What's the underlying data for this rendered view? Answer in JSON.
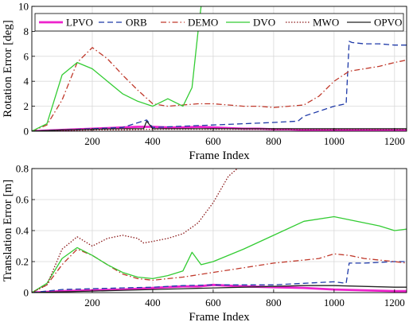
{
  "chart_data": [
    {
      "type": "line",
      "xlabel": "Frame Index",
      "ylabel": "Rotation Error [deg]",
      "xlim": [
        0,
        1240
      ],
      "ylim": [
        0,
        10
      ],
      "xticks": [
        200,
        400,
        600,
        800,
        1000,
        1200
      ],
      "yticks": [
        0,
        2,
        4,
        6,
        8,
        10
      ],
      "grid": true,
      "legend": {
        "position": "top",
        "entries": [
          "LPVO",
          "ORB",
          "DEMO",
          "DVO",
          "MWO",
          "OPVO"
        ]
      },
      "series": [
        {
          "name": "LPVO",
          "color": "#ee22cc",
          "style": "solid-thick",
          "x": [
            0,
            50,
            100,
            150,
            200,
            250,
            300,
            350,
            400,
            450,
            500,
            550,
            600,
            650,
            700,
            750,
            800,
            850,
            900,
            950,
            1000,
            1050,
            1100,
            1150,
            1200,
            1240
          ],
          "y": [
            0,
            0.05,
            0.1,
            0.15,
            0.2,
            0.25,
            0.3,
            0.35,
            0.35,
            0.3,
            0.3,
            0.35,
            0.3,
            0.25,
            0.2,
            0.2,
            0.15,
            0.15,
            0.1,
            0.1,
            0.1,
            0.1,
            0.1,
            0.1,
            0.1,
            0.1
          ]
        },
        {
          "name": "ORB",
          "color": "#1f3aa8",
          "style": "dashed",
          "x": [
            0,
            100,
            200,
            300,
            380,
            400,
            500,
            600,
            700,
            800,
            880,
            900,
            950,
            1000,
            1040,
            1050,
            1060,
            1100,
            1150,
            1200,
            1240
          ],
          "y": [
            0,
            0.1,
            0.2,
            0.3,
            0.9,
            0.3,
            0.4,
            0.5,
            0.6,
            0.7,
            0.8,
            1.2,
            1.6,
            2.0,
            2.2,
            7.2,
            7.1,
            7.0,
            7.0,
            6.9,
            6.9
          ]
        },
        {
          "name": "DEMO",
          "color": "#c0392b",
          "style": "dashdot",
          "x": [
            0,
            50,
            100,
            150,
            200,
            250,
            300,
            350,
            400,
            450,
            500,
            550,
            600,
            650,
            700,
            750,
            800,
            850,
            900,
            950,
            1000,
            1050,
            1100,
            1150,
            1200,
            1240
          ],
          "y": [
            0,
            0.5,
            2.5,
            5.5,
            6.7,
            5.8,
            4.5,
            3.3,
            2.2,
            2.0,
            2.1,
            2.2,
            2.2,
            2.1,
            2.0,
            2.0,
            1.9,
            2.0,
            2.1,
            2.8,
            4.0,
            4.8,
            5.0,
            5.2,
            5.5,
            5.7
          ]
        },
        {
          "name": "DVO",
          "color": "#33cc33",
          "style": "solid",
          "x": [
            0,
            50,
            100,
            150,
            200,
            250,
            300,
            350,
            400,
            450,
            500,
            530,
            550,
            560
          ],
          "y": [
            0,
            0.6,
            4.5,
            5.5,
            5.0,
            4.0,
            3.0,
            2.4,
            2.0,
            2.6,
            2.0,
            3.5,
            8.0,
            10
          ]
        },
        {
          "name": "MWO",
          "color": "#8b1a1a",
          "style": "dotted",
          "x": [
            0,
            100,
            200,
            300,
            400,
            500,
            600,
            700,
            800,
            900,
            1000,
            1100,
            1200,
            1240
          ],
          "y": [
            0,
            0.05,
            0.1,
            0.1,
            0.15,
            0.15,
            0.15,
            0.15,
            0.15,
            0.15,
            0.15,
            0.15,
            0.15,
            0.15
          ]
        },
        {
          "name": "OPVO",
          "color": "#222222",
          "style": "solid",
          "x": [
            0,
            100,
            200,
            300,
            370,
            380,
            400,
            500,
            600,
            700,
            800,
            900,
            1000,
            1100,
            1200,
            1240
          ],
          "y": [
            0,
            0.1,
            0.15,
            0.2,
            0.2,
            0.8,
            0.2,
            0.2,
            0.2,
            0.2,
            0.2,
            0.2,
            0.2,
            0.2,
            0.2,
            0.2
          ]
        }
      ]
    },
    {
      "type": "line",
      "xlabel": "Frame Index",
      "ylabel": "Translation Error [m]",
      "xlim": [
        0,
        1240
      ],
      "ylim": [
        0,
        0.8
      ],
      "xticks": [
        200,
        400,
        600,
        800,
        1000,
        1200
      ],
      "yticks": [
        0,
        0.2,
        0.4,
        0.6,
        0.8
      ],
      "grid": true,
      "series": [
        {
          "name": "LPVO",
          "color": "#ee22cc",
          "style": "solid-thick",
          "x": [
            0,
            100,
            200,
            300,
            400,
            500,
            550,
            600,
            700,
            800,
            900,
            1000,
            1100,
            1200,
            1240
          ],
          "y": [
            0,
            0.01,
            0.015,
            0.02,
            0.03,
            0.04,
            0.04,
            0.05,
            0.04,
            0.035,
            0.03,
            0.02,
            0.015,
            0.01,
            0.01
          ]
        },
        {
          "name": "ORB",
          "color": "#1f3aa8",
          "style": "dashed",
          "x": [
            0,
            100,
            200,
            300,
            400,
            500,
            600,
            700,
            800,
            900,
            1000,
            1040,
            1050,
            1100,
            1200,
            1240
          ],
          "y": [
            0,
            0.02,
            0.025,
            0.03,
            0.035,
            0.045,
            0.05,
            0.05,
            0.05,
            0.06,
            0.07,
            0.06,
            0.19,
            0.19,
            0.2,
            0.2
          ]
        },
        {
          "name": "DEMO",
          "color": "#c0392b",
          "style": "dashdot",
          "x": [
            0,
            50,
            100,
            150,
            200,
            250,
            300,
            350,
            400,
            500,
            600,
            700,
            800,
            900,
            950,
            1000,
            1050,
            1100,
            1150,
            1200,
            1240
          ],
          "y": [
            0,
            0.05,
            0.18,
            0.28,
            0.24,
            0.18,
            0.12,
            0.09,
            0.08,
            0.1,
            0.13,
            0.16,
            0.19,
            0.21,
            0.22,
            0.25,
            0.24,
            0.22,
            0.21,
            0.2,
            0.19
          ]
        },
        {
          "name": "DVO",
          "color": "#33cc33",
          "style": "solid",
          "x": [
            0,
            50,
            100,
            150,
            200,
            250,
            300,
            350,
            400,
            450,
            500,
            530,
            560,
            600,
            700,
            800,
            900,
            1000,
            1050,
            1100,
            1150,
            1200,
            1240
          ],
          "y": [
            0,
            0.06,
            0.22,
            0.29,
            0.24,
            0.18,
            0.13,
            0.1,
            0.09,
            0.11,
            0.14,
            0.26,
            0.18,
            0.2,
            0.28,
            0.37,
            0.46,
            0.49,
            0.47,
            0.45,
            0.43,
            0.4,
            0.41
          ]
        },
        {
          "name": "MWO",
          "color": "#8b1a1a",
          "style": "dotted",
          "x": [
            0,
            50,
            100,
            150,
            200,
            250,
            300,
            350,
            370,
            400,
            450,
            500,
            550,
            600,
            650,
            680
          ],
          "y": [
            0,
            0.05,
            0.28,
            0.36,
            0.3,
            0.35,
            0.37,
            0.35,
            0.32,
            0.33,
            0.35,
            0.38,
            0.45,
            0.58,
            0.75,
            0.8
          ]
        },
        {
          "name": "OPVO",
          "color": "#222222",
          "style": "solid",
          "x": [
            0,
            100,
            200,
            300,
            400,
            500,
            600,
            700,
            800,
            900,
            1000,
            1100,
            1200,
            1240
          ],
          "y": [
            0,
            0.005,
            0.01,
            0.015,
            0.02,
            0.025,
            0.03,
            0.035,
            0.04,
            0.045,
            0.045,
            0.04,
            0.035,
            0.035
          ]
        }
      ]
    }
  ]
}
